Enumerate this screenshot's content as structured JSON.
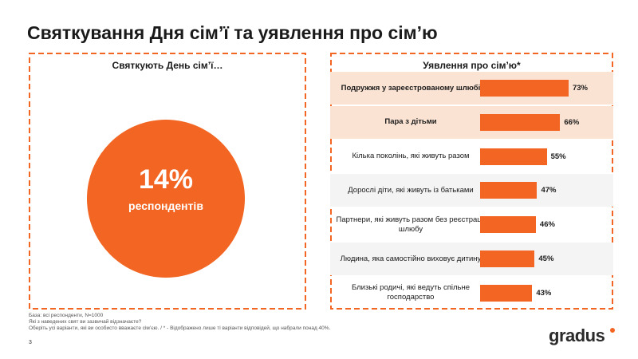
{
  "title": "Святкування Дня сім’ї та уявлення про сім’ю",
  "left_panel": {
    "title": "Святкують День сім’ї…",
    "big_value": "14%",
    "sub_label": "респондентів"
  },
  "right_panel": {
    "title": "Уявлення про сім’ю*"
  },
  "colors": {
    "accent": "#f26522",
    "highlight_row": "#fbe3d3",
    "alt_row": "#f4f4f4"
  },
  "chart_data": {
    "type": "bar",
    "orientation": "horizontal",
    "categories": [
      "Подружжя у зареєстрованому шлюбі",
      "Пара з дітьми",
      "Кілька поколінь, які живуть разом",
      "Дорослі діти, які живуть із батьками",
      "Партнери, які живуть разом без реєстрації шлюбу",
      "Людина, яка самостійно виховує дитину",
      "Близькі родичі, які ведуть спільне господарство"
    ],
    "values": [
      73,
      66,
      55,
      47,
      46,
      45,
      43
    ],
    "value_labels": [
      "73%",
      "66%",
      "55%",
      "47%",
      "46%",
      "45%",
      "43%"
    ],
    "highlighted": [
      true,
      true,
      false,
      false,
      false,
      false,
      false
    ],
    "xlim": [
      0,
      100
    ]
  },
  "footnotes": {
    "base": "База: всі респонденти, N=1000",
    "question1": "Які з наведених свят ви зазвичай відзначаєте?",
    "question2": "Оберіть усі варіанти, які ви особисто вважаєте сім’єю. / * - Відображено лише ті варіанти відповідей, що набрали понад 40%."
  },
  "page_number": "3",
  "logo_text": "gradus"
}
